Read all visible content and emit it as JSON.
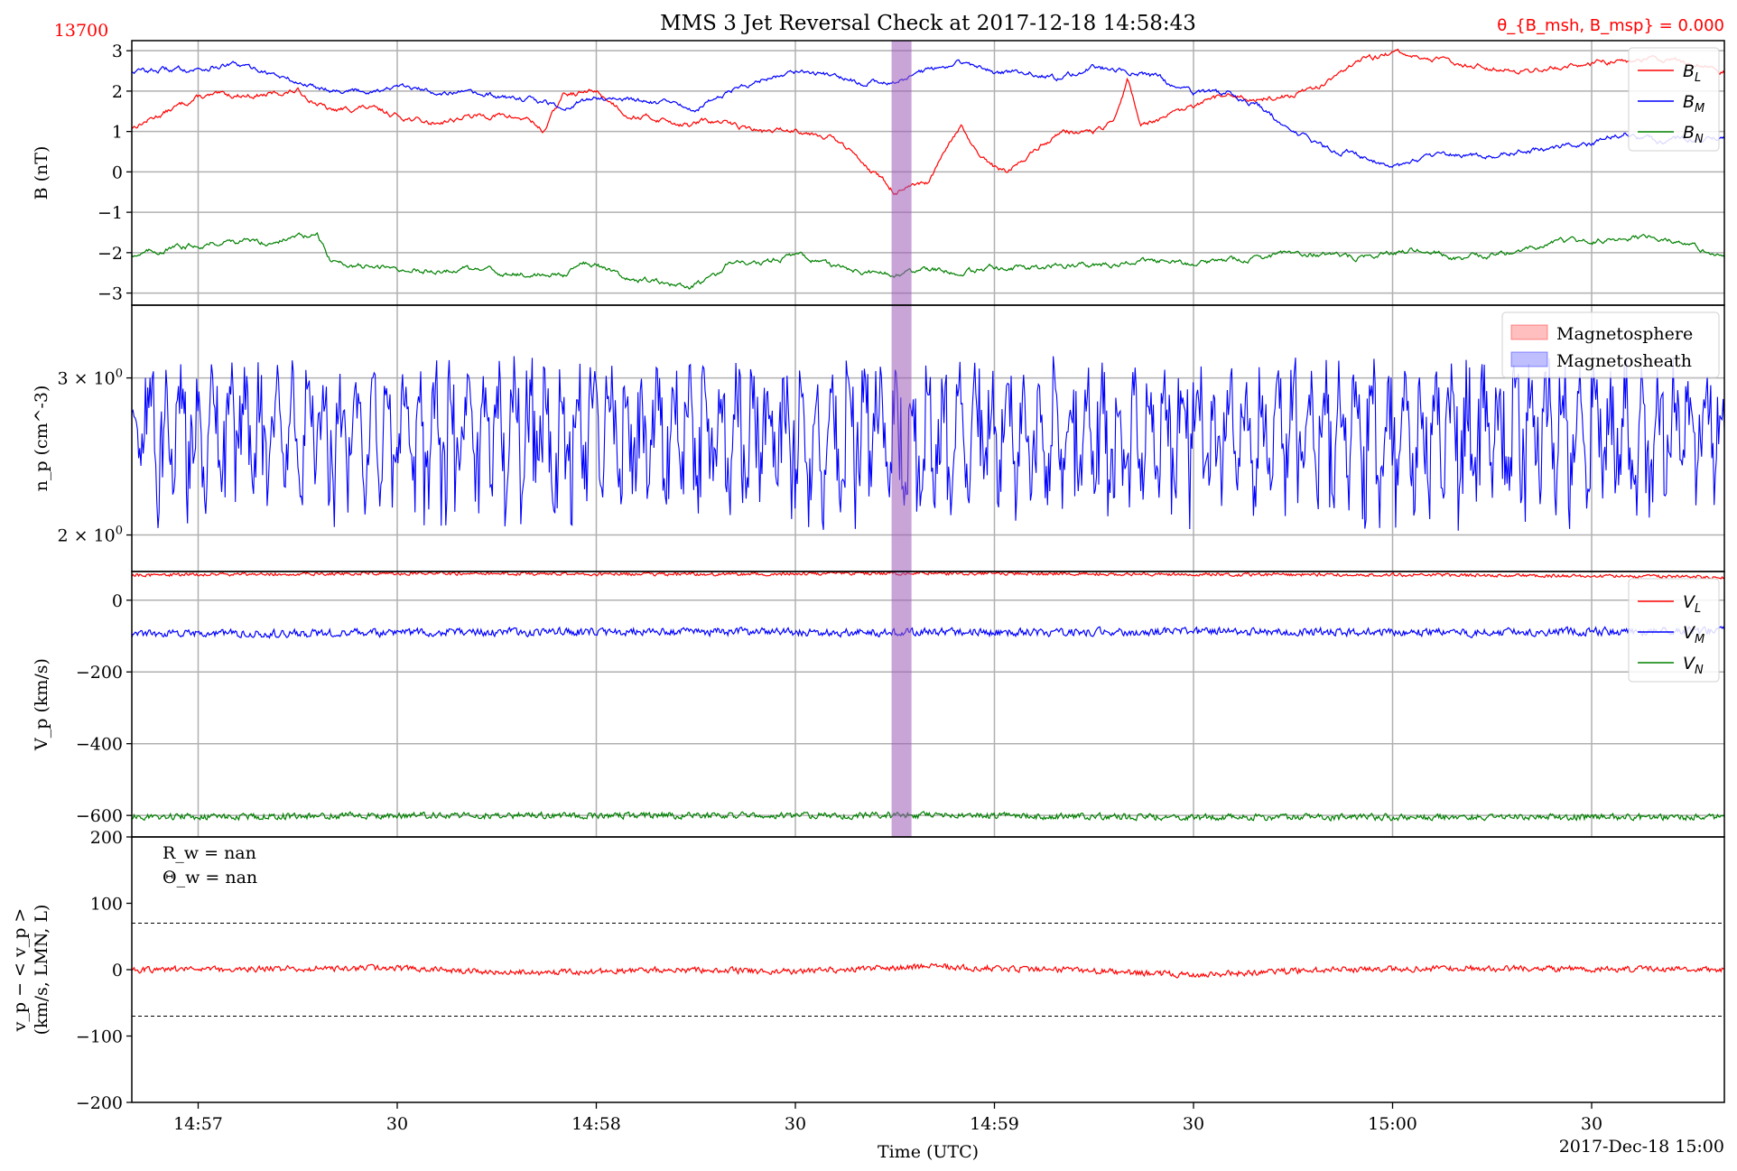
{
  "figure": {
    "title": "MMS 3 Jet Reversal Check at 2017-12-18 14:58:43",
    "index_label": "13700",
    "theta_label": "θ_{B_msh, B_msp} = 0.000",
    "xlabel": "Time (UTC)",
    "date_label": "2017-Dec-18 15:00",
    "colors": {
      "red": "#ff0000",
      "blue": "#0000ff",
      "green": "#008000",
      "highlight": "#9b59b6"
    }
  },
  "chart_data": [
    {
      "id": "B",
      "type": "line",
      "ylabel": "B (nT)",
      "ylim": [
        -3.3,
        3.25
      ],
      "yticks": [
        -3,
        -2,
        -1,
        0,
        1,
        2,
        3
      ],
      "ytick_labels": [
        "−3",
        "−2",
        "−1",
        "0",
        "1",
        "2",
        "3"
      ],
      "grid": true,
      "legend": "top-right",
      "series": [
        {
          "name": "B_L",
          "color": "red",
          "x": [
            0,
            10,
            15,
            20,
            25,
            30,
            35,
            40,
            45,
            50,
            55,
            60,
            62,
            65,
            70,
            75,
            80,
            84,
            86,
            90,
            95,
            100,
            105,
            110,
            115,
            120,
            124,
            125,
            128,
            130,
            132,
            135,
            140,
            145,
            148,
            150,
            152,
            155,
            160,
            165,
            170,
            175,
            180,
            183,
            186,
            190,
            195,
            200,
            205,
            210,
            215,
            220,
            225,
            230,
            235,
            240
          ],
          "values": [
            1.1,
            1.85,
            1.9,
            1.9,
            2.0,
            1.5,
            1.6,
            1.4,
            1.2,
            1.35,
            1.4,
            1.3,
            1.0,
            1.9,
            2.0,
            1.4,
            1.3,
            1.15,
            1.25,
            1.2,
            1.0,
            1.05,
            0.9,
            0.3,
            -0.5,
            -0.3,
            0.9,
            1.1,
            0.3,
            0.1,
            0.0,
            0.4,
            1.0,
            1.0,
            1.2,
            2.3,
            1.2,
            1.3,
            1.6,
            1.9,
            1.8,
            1.9,
            2.2,
            2.6,
            2.8,
            2.95,
            2.8,
            2.7,
            2.6,
            2.5,
            2.6,
            2.7,
            2.75,
            2.8,
            2.7,
            2.5
          ]
        },
        {
          "name": "B_M",
          "color": "blue",
          "x": [
            0,
            10,
            15,
            20,
            25,
            30,
            35,
            40,
            45,
            50,
            55,
            60,
            65,
            70,
            75,
            80,
            85,
            90,
            95,
            100,
            105,
            110,
            115,
            120,
            125,
            130,
            135,
            140,
            145,
            150,
            155,
            160,
            165,
            170,
            175,
            180,
            185,
            190,
            195,
            200,
            205,
            210,
            215,
            220,
            225,
            230,
            235,
            240
          ],
          "values": [
            2.5,
            2.55,
            2.65,
            2.5,
            2.2,
            2.05,
            2.0,
            2.1,
            2.0,
            1.95,
            1.85,
            1.8,
            1.6,
            1.85,
            1.8,
            1.7,
            1.55,
            2.0,
            2.3,
            2.5,
            2.4,
            2.2,
            2.25,
            2.5,
            2.7,
            2.45,
            2.5,
            2.3,
            2.6,
            2.5,
            2.3,
            1.9,
            1.95,
            1.6,
            1.0,
            0.6,
            0.4,
            0.1,
            0.3,
            0.45,
            0.4,
            0.5,
            0.6,
            0.7,
            0.95,
            0.75,
            0.8,
            0.85
          ]
        },
        {
          "name": "B_N",
          "color": "green",
          "x": [
            0,
            10,
            15,
            20,
            25,
            28,
            30,
            35,
            40,
            45,
            50,
            55,
            60,
            65,
            68,
            70,
            75,
            80,
            84,
            88,
            90,
            95,
            100,
            105,
            110,
            115,
            120,
            125,
            130,
            135,
            140,
            145,
            150,
            155,
            160,
            165,
            170,
            175,
            180,
            185,
            190,
            195,
            200,
            205,
            210,
            215,
            220,
            225,
            230,
            235,
            240
          ],
          "values": [
            -2.05,
            -1.8,
            -1.7,
            -1.75,
            -1.6,
            -1.6,
            -2.2,
            -2.35,
            -2.4,
            -2.45,
            -2.4,
            -2.5,
            -2.55,
            -2.55,
            -2.2,
            -2.3,
            -2.6,
            -2.75,
            -2.9,
            -2.6,
            -2.2,
            -2.3,
            -2.05,
            -2.3,
            -2.5,
            -2.55,
            -2.4,
            -2.5,
            -2.35,
            -2.4,
            -2.3,
            -2.3,
            -2.25,
            -2.2,
            -2.3,
            -2.2,
            -2.15,
            -2.0,
            -2.05,
            -2.1,
            -2.0,
            -1.9,
            -2.15,
            -2.05,
            -1.95,
            -1.75,
            -1.7,
            -1.65,
            -1.6,
            -1.85,
            -2.05
          ]
        }
      ]
    },
    {
      "id": "n",
      "type": "line",
      "ylabel": "n_p (cm^-3)",
      "yscale": "log",
      "ylim": [
        1.82,
        3.62
      ],
      "yticks": [
        2,
        3
      ],
      "ytick_labels": [
        "2 × 10^0",
        "3 × 10^0"
      ],
      "grid": true,
      "legend": "top-right",
      "noisy": {
        "mean": 2.6,
        "amplitude": 0.55,
        "min": 1.85,
        "max": 3.52
      },
      "legend_entries": [
        {
          "name": "Magnetosphere",
          "color": "red"
        },
        {
          "name": "Magnetosheath",
          "color": "blue"
        }
      ],
      "series": [
        {
          "name": "n_p",
          "color": "blue",
          "x": [
            0,
            20,
            40,
            60,
            80,
            100,
            120,
            140,
            160,
            180,
            200,
            220,
            240
          ],
          "values": [
            2.6,
            2.65,
            2.6,
            2.62,
            2.55,
            2.6,
            2.63,
            2.6,
            2.62,
            2.6,
            2.65,
            2.6,
            2.6
          ]
        }
      ]
    },
    {
      "id": "V",
      "type": "line",
      "ylabel": "V_p (km/s)",
      "ylim": [
        -660,
        80
      ],
      "yticks": [
        0,
        -200,
        -400,
        -600
      ],
      "ytick_labels": [
        "0",
        "−200",
        "−400",
        "−600"
      ],
      "grid": true,
      "legend": "top-right",
      "series": [
        {
          "name": "V_L",
          "color": "red",
          "noise": 4,
          "x": [
            0,
            40,
            80,
            120,
            160,
            200,
            240
          ],
          "values": [
            70,
            75,
            72,
            75,
            72,
            70,
            65
          ]
        },
        {
          "name": "V_M",
          "color": "blue",
          "noise": 10,
          "x": [
            0,
            40,
            80,
            120,
            160,
            200,
            240
          ],
          "values": [
            -95,
            -90,
            -88,
            -90,
            -88,
            -90,
            -85
          ]
        },
        {
          "name": "V_N",
          "color": "green",
          "noise": 8,
          "x": [
            0,
            40,
            80,
            120,
            160,
            200,
            240
          ],
          "values": [
            -605,
            -600,
            -600,
            -600,
            -605,
            -605,
            -605
          ]
        }
      ]
    },
    {
      "id": "dV",
      "type": "line",
      "ylabel": "v_p − < v_p > (km/s, LMN, L)",
      "ylim": [
        -200,
        200
      ],
      "yticks": [
        200,
        100,
        0,
        -100,
        -200
      ],
      "ytick_labels": [
        "200",
        "100",
        "0",
        "−100",
        "−200"
      ],
      "grid": false,
      "hlines": [
        70,
        -70
      ],
      "annotations": [
        "R_w = nan",
        "Θ_w = nan"
      ],
      "series": [
        {
          "name": "",
          "color": "red",
          "noise": 4,
          "x": [
            0,
            40,
            60,
            80,
            100,
            120,
            140,
            160,
            180,
            200,
            240
          ],
          "values": [
            0,
            2,
            -5,
            0,
            -3,
            5,
            0,
            -8,
            0,
            2,
            0
          ]
        }
      ]
    }
  ],
  "xaxis": {
    "xlim": [
      0,
      240
    ],
    "ticks": [
      10,
      40,
      70,
      100,
      130,
      160,
      190,
      220
    ],
    "tick_labels": [
      "14:57",
      "30",
      "14:58",
      "30",
      "14:59",
      "30",
      "15:00",
      "30"
    ]
  },
  "highlight": {
    "x_start": 114.5,
    "x_end": 117.5
  }
}
